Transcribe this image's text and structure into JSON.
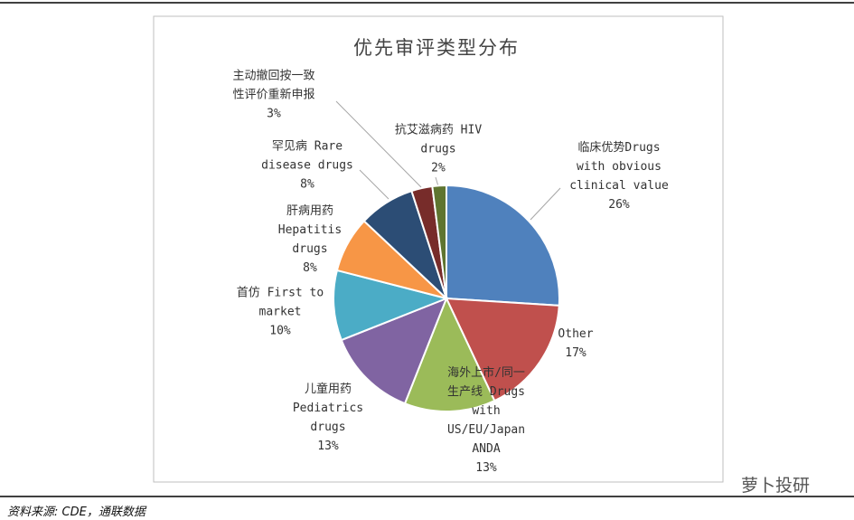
{
  "chart_data": {
    "type": "pie",
    "title": "优先审评类型分布",
    "categories": [
      "临床优势Drugs\nwith obvious\nclinical value",
      "Other",
      "海外上市/同一\n生产线 Drugs\nwith\nUS/EU/Japan\nANDA",
      "儿童用药\nPediatrics\ndrugs",
      "首仿 First to\nmarket",
      "肝病用药\nHepatitis\ndrugs",
      "罕见病 Rare\ndisease drugs",
      "主动撤回按一致\n性评价重新申报",
      "抗艾滋病药 HIV\ndrugs"
    ],
    "values": [
      26,
      17,
      13,
      13,
      10,
      8,
      8,
      3,
      2
    ],
    "value_labels": [
      "26%",
      "17%",
      "13%",
      "13%",
      "10%",
      "8%",
      "8%",
      "3%",
      "2%"
    ],
    "colors": [
      "#4f81bd",
      "#c0504d",
      "#9bbb59",
      "#8064a2",
      "#4bacc6",
      "#f79646",
      "#2c4d75",
      "#772c2a",
      "#5f7530"
    ]
  },
  "source": "资料来源: CDE，通联数据",
  "watermark": "萝卜投研"
}
